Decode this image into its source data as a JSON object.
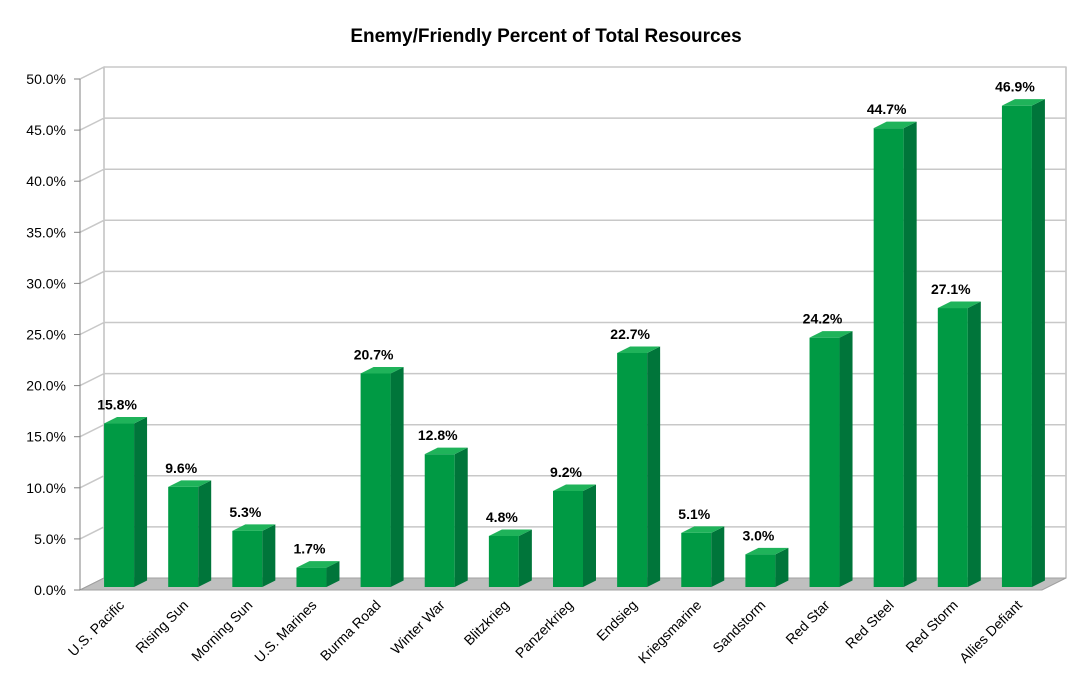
{
  "chart_data": {
    "type": "bar",
    "title": "Enemy/Friendly Percent of Total Resources",
    "xlabel": "",
    "ylabel": "",
    "categories": [
      "U.S. Pacific",
      "Rising Sun",
      "Morning Sun",
      "U.S. Marines",
      "Burma Road",
      "Winter War",
      "Blitzkrieg",
      "Panzerkrieg",
      "Endsieg",
      "Kriegsmarine",
      "Sandstorm",
      "Red Star",
      "Red Steel",
      "Red Storm",
      "Allies Defiant"
    ],
    "values": [
      15.8,
      9.6,
      5.3,
      1.7,
      20.7,
      12.8,
      4.8,
      9.2,
      22.7,
      5.1,
      3.0,
      24.2,
      44.7,
      27.1,
      46.9
    ],
    "data_labels": [
      "15.8%",
      "9.6%",
      "5.3%",
      "1.7%",
      "20.7%",
      "12.8%",
      "4.8%",
      "9.2%",
      "22.7%",
      "5.1%",
      "3.0%",
      "24.2%",
      "44.7%",
      "27.1%",
      "46.9%"
    ],
    "yticks": [
      "0.0%",
      "5.0%",
      "10.0%",
      "15.0%",
      "20.0%",
      "25.0%",
      "30.0%",
      "35.0%",
      "40.0%",
      "45.0%",
      "50.0%"
    ],
    "ylim": [
      0,
      50
    ],
    "grid": true,
    "legend": "none",
    "colors": {
      "bar_front": "#009a44",
      "bar_side": "#00753a",
      "bar_top": "#1fb35a",
      "grid": "#c8c8c8",
      "floor": "#bfbfbf"
    }
  }
}
